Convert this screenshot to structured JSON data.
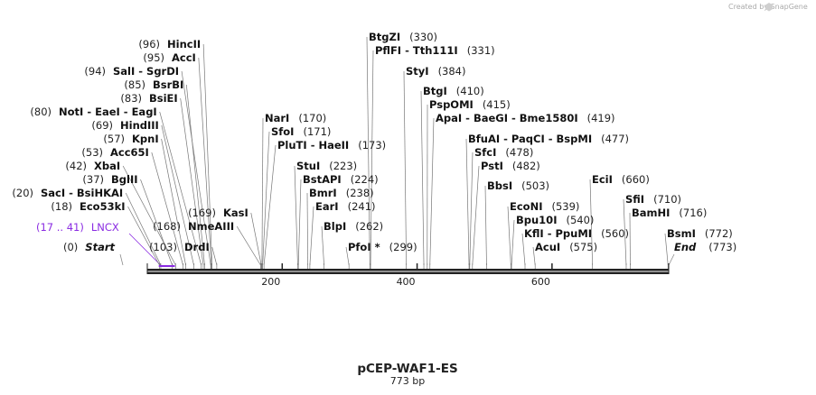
{
  "credit": "Created by SnapGene",
  "map": {
    "title": "pCEP-WAF1-ES",
    "subtitle": "773 bp",
    "length": 773,
    "ticks": [
      200,
      400,
      600
    ],
    "start_label": "Start",
    "start_pos": "(0)",
    "end_label": "End",
    "end_pos": "(773)",
    "feature": {
      "range": "(17 .. 41)",
      "name": "LNCX",
      "from": 17,
      "to": 41,
      "color": "#8a2be2"
    }
  },
  "sites": [
    {
      "pos": 96,
      "pos_text": "(96)",
      "names": [
        "HincII"
      ]
    },
    {
      "pos": 95,
      "pos_text": "(95)",
      "names": [
        "AccI"
      ]
    },
    {
      "pos": 94,
      "pos_text": "(94)",
      "names": [
        "SalI",
        "SgrDI"
      ]
    },
    {
      "pos": 85,
      "pos_text": "(85)",
      "names": [
        "BsrBI"
      ]
    },
    {
      "pos": 83,
      "pos_text": "(83)",
      "names": [
        "BsiEI"
      ]
    },
    {
      "pos": 80,
      "pos_text": "(80)",
      "names": [
        "NotI",
        "EaeI",
        "EagI"
      ]
    },
    {
      "pos": 69,
      "pos_text": "(69)",
      "names": [
        "HindIII"
      ]
    },
    {
      "pos": 57,
      "pos_text": "(57)",
      "names": [
        "KpnI"
      ]
    },
    {
      "pos": 53,
      "pos_text": "(53)",
      "names": [
        "Acc65I"
      ]
    },
    {
      "pos": 42,
      "pos_text": "(42)",
      "names": [
        "XbaI"
      ]
    },
    {
      "pos": 37,
      "pos_text": "(37)",
      "names": [
        "BglII"
      ]
    },
    {
      "pos": 20,
      "pos_text": "(20)",
      "names": [
        "SacI",
        "BsiHKAI"
      ]
    },
    {
      "pos": 18,
      "pos_text": "(18)",
      "names": [
        "Eco53kI"
      ]
    },
    {
      "pos": 168,
      "pos_text": "(168)",
      "names": [
        "NmeAIII"
      ]
    },
    {
      "pos": 103,
      "pos_text": "(103)",
      "names": [
        "DrdI"
      ]
    },
    {
      "pos": 169,
      "pos_text": "(169)",
      "names": [
        "KasI"
      ]
    },
    {
      "pos": 170,
      "pos_text": "(170)",
      "names": [
        "NarI"
      ]
    },
    {
      "pos": 171,
      "pos_text": "(171)",
      "names": [
        "SfoI"
      ]
    },
    {
      "pos": 173,
      "pos_text": "(173)",
      "names": [
        "PluTI",
        "HaeII"
      ]
    },
    {
      "pos": 223,
      "pos_text": "(223)",
      "names": [
        "StuI"
      ]
    },
    {
      "pos": 224,
      "pos_text": "(224)",
      "names": [
        "BstAPI"
      ]
    },
    {
      "pos": 238,
      "pos_text": "(238)",
      "names": [
        "BmrI"
      ]
    },
    {
      "pos": 241,
      "pos_text": "(241)",
      "names": [
        "EarI"
      ]
    },
    {
      "pos": 262,
      "pos_text": "(262)",
      "names": [
        "BlpI"
      ]
    },
    {
      "pos": 299,
      "pos_text": "(299)",
      "names": [
        "PfoI *"
      ]
    },
    {
      "pos": 330,
      "pos_text": "(330)",
      "names": [
        "BtgZI"
      ]
    },
    {
      "pos": 331,
      "pos_text": "(331)",
      "names": [
        "PflFI",
        "Tth111I"
      ]
    },
    {
      "pos": 384,
      "pos_text": "(384)",
      "names": [
        "StyI"
      ]
    },
    {
      "pos": 410,
      "pos_text": "(410)",
      "names": [
        "BtgI"
      ]
    },
    {
      "pos": 415,
      "pos_text": "(415)",
      "names": [
        "PspOMI"
      ]
    },
    {
      "pos": 419,
      "pos_text": "(419)",
      "names": [
        "ApaI",
        "BaeGI",
        "Bme1580I"
      ]
    },
    {
      "pos": 477,
      "pos_text": "(477)",
      "names": [
        "BfuAI",
        "PaqCI",
        "BspMI"
      ]
    },
    {
      "pos": 478,
      "pos_text": "(478)",
      "names": [
        "SfcI"
      ]
    },
    {
      "pos": 482,
      "pos_text": "(482)",
      "names": [
        "PstI"
      ]
    },
    {
      "pos": 503,
      "pos_text": "(503)",
      "names": [
        "BbsI"
      ]
    },
    {
      "pos": 539,
      "pos_text": "(539)",
      "names": [
        "EcoNI"
      ]
    },
    {
      "pos": 540,
      "pos_text": "(540)",
      "names": [
        "Bpu10I"
      ]
    },
    {
      "pos": 560,
      "pos_text": "(560)",
      "names": [
        "KflI",
        "PpuMI"
      ]
    },
    {
      "pos": 575,
      "pos_text": "(575)",
      "names": [
        "AcuI"
      ]
    },
    {
      "pos": 660,
      "pos_text": "(660)",
      "names": [
        "EciI"
      ]
    },
    {
      "pos": 710,
      "pos_text": "(710)",
      "names": [
        "SfiI"
      ]
    },
    {
      "pos": 716,
      "pos_text": "(716)",
      "names": [
        "BamHI"
      ]
    },
    {
      "pos": 772,
      "pos_text": "(772)",
      "names": [
        "BsmI"
      ]
    }
  ]
}
